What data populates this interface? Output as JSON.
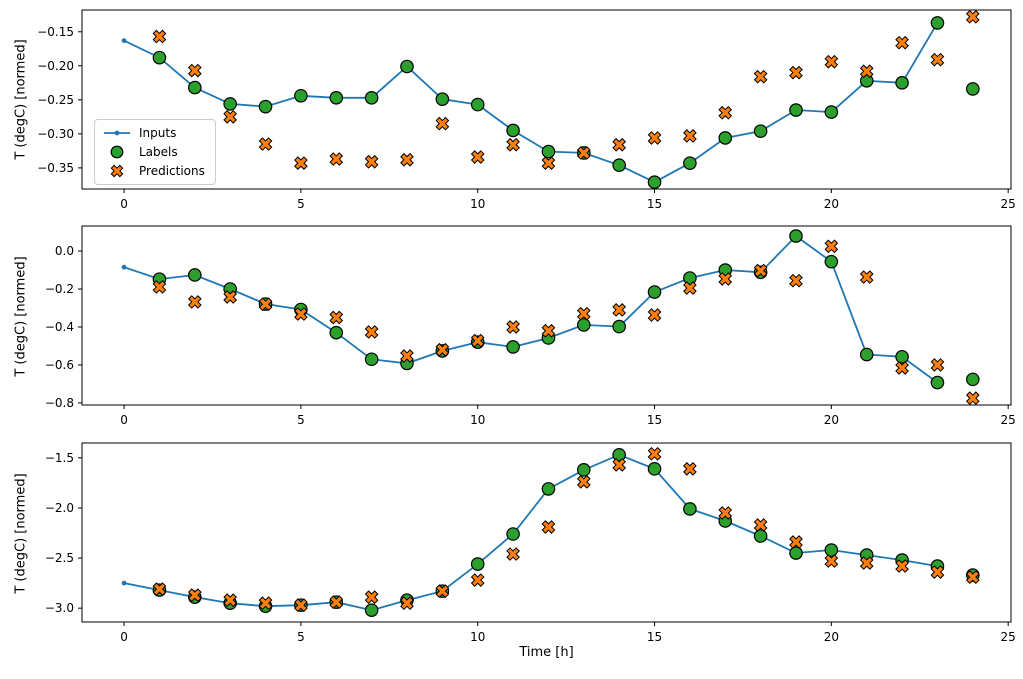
{
  "figure": {
    "xlabel": "Time [h]",
    "background_color": "#ffffff",
    "legend": {
      "items": [
        {
          "label": "Inputs",
          "type": "line",
          "color": "#1f77b4",
          "edge": "#000000"
        },
        {
          "label": "Labels",
          "type": "scatter-circle",
          "color": "#2ca02c",
          "edge": "#000000"
        },
        {
          "label": "Predictions",
          "type": "scatter-x",
          "color": "#ff7f0e",
          "edge": "#000000"
        }
      ]
    }
  },
  "chart_data": [
    {
      "type": "line",
      "title": "",
      "ylabel": "T (degC) [normed]",
      "xlabel": "",
      "xlim": [
        -1.19,
        25.08
      ],
      "ylim": [
        -0.381,
        -0.118
      ],
      "grid": false,
      "legend_position": "center-left",
      "xticks": {
        "values": [
          0,
          5,
          10,
          15,
          20,
          25
        ],
        "labels": [
          "0",
          "5",
          "10",
          "15",
          "20",
          "25"
        ]
      },
      "yticks": {
        "values": [
          -0.15,
          -0.2,
          -0.25,
          -0.3,
          -0.35
        ],
        "labels": [
          "−0.15",
          "−0.20",
          "−0.25",
          "−0.30",
          "−0.35"
        ]
      },
      "series": [
        {
          "name": "Inputs",
          "type": "line",
          "color": "#1f77b4",
          "x": [
            0,
            1,
            2,
            3,
            4,
            5,
            6,
            7,
            8,
            9,
            10,
            11,
            12,
            13,
            14,
            15,
            16,
            17,
            18,
            19,
            20,
            21,
            22,
            23
          ],
          "y": [
            -0.163,
            -0.188,
            -0.232,
            -0.256,
            -0.26,
            -0.244,
            -0.247,
            -0.247,
            -0.201,
            -0.249,
            -0.257,
            -0.295,
            -0.326,
            -0.328,
            -0.346,
            -0.371,
            -0.343,
            -0.306,
            -0.296,
            -0.265,
            -0.268,
            -0.222,
            -0.225,
            -0.137
          ]
        },
        {
          "name": "Labels",
          "type": "scatter-circle",
          "color": "#2ca02c",
          "edge": "#000000",
          "x": [
            1,
            2,
            3,
            4,
            5,
            6,
            7,
            8,
            9,
            10,
            11,
            12,
            13,
            14,
            15,
            16,
            17,
            18,
            19,
            20,
            21,
            22,
            23,
            24
          ],
          "y": [
            -0.188,
            -0.232,
            -0.256,
            -0.26,
            -0.244,
            -0.247,
            -0.247,
            -0.201,
            -0.249,
            -0.257,
            -0.295,
            -0.326,
            -0.328,
            -0.346,
            -0.371,
            -0.343,
            -0.306,
            -0.296,
            -0.265,
            -0.268,
            -0.222,
            -0.225,
            -0.137,
            -0.234
          ]
        },
        {
          "name": "Predictions",
          "type": "scatter-x",
          "color": "#ff7f0e",
          "edge": "#000000",
          "x": [
            1,
            2,
            3,
            4,
            5,
            6,
            7,
            8,
            9,
            10,
            11,
            12,
            13,
            14,
            15,
            16,
            17,
            18,
            19,
            20,
            21,
            22,
            23,
            24
          ],
          "y": [
            -0.157,
            -0.207,
            -0.275,
            -0.315,
            -0.343,
            -0.337,
            -0.341,
            -0.338,
            -0.285,
            -0.334,
            -0.316,
            -0.343,
            -0.328,
            -0.316,
            -0.306,
            -0.303,
            -0.269,
            -0.216,
            -0.21,
            -0.194,
            -0.208,
            -0.166,
            -0.191,
            -0.128
          ]
        }
      ]
    },
    {
      "type": "line",
      "title": "",
      "ylabel": "T (degC) [normed]",
      "xlabel": "",
      "xlim": [
        -1.19,
        25.08
      ],
      "ylim": [
        -0.811,
        0.132
      ],
      "grid": false,
      "legend_position": "none",
      "xticks": {
        "values": [
          0,
          5,
          10,
          15,
          20,
          25
        ],
        "labels": [
          "0",
          "5",
          "10",
          "15",
          "20",
          "25"
        ]
      },
      "yticks": {
        "values": [
          0.0,
          -0.2,
          -0.4,
          -0.6,
          -0.8
        ],
        "labels": [
          "0.0",
          "−0.2",
          "−0.4",
          "−0.6",
          "−0.8"
        ]
      },
      "series": [
        {
          "name": "Inputs",
          "type": "line",
          "color": "#1f77b4",
          "x": [
            0,
            1,
            2,
            3,
            4,
            5,
            6,
            7,
            8,
            9,
            10,
            11,
            12,
            13,
            14,
            15,
            16,
            17,
            18,
            19,
            20,
            21,
            22,
            23
          ],
          "y": [
            -0.085,
            -0.148,
            -0.126,
            -0.2,
            -0.279,
            -0.308,
            -0.43,
            -0.57,
            -0.592,
            -0.526,
            -0.48,
            -0.505,
            -0.458,
            -0.389,
            -0.398,
            -0.216,
            -0.142,
            -0.1,
            -0.112,
            0.079,
            -0.056,
            -0.545,
            -0.557,
            -0.693
          ]
        },
        {
          "name": "Labels",
          "type": "scatter-circle",
          "color": "#2ca02c",
          "edge": "#000000",
          "x": [
            1,
            2,
            3,
            4,
            5,
            6,
            7,
            8,
            9,
            10,
            11,
            12,
            13,
            14,
            15,
            16,
            17,
            18,
            19,
            20,
            21,
            22,
            23,
            24
          ],
          "y": [
            -0.148,
            -0.126,
            -0.2,
            -0.279,
            -0.308,
            -0.43,
            -0.57,
            -0.592,
            -0.526,
            -0.48,
            -0.505,
            -0.458,
            -0.389,
            -0.398,
            -0.216,
            -0.142,
            -0.1,
            -0.112,
            0.079,
            -0.056,
            -0.545,
            -0.557,
            -0.693,
            -0.676
          ]
        },
        {
          "name": "Predictions",
          "type": "scatter-x",
          "color": "#ff7f0e",
          "edge": "#000000",
          "x": [
            1,
            2,
            3,
            4,
            5,
            6,
            7,
            8,
            9,
            10,
            11,
            12,
            13,
            14,
            15,
            16,
            17,
            18,
            19,
            20,
            21,
            22,
            23,
            24
          ],
          "y": [
            -0.189,
            -0.268,
            -0.242,
            -0.28,
            -0.332,
            -0.35,
            -0.426,
            -0.553,
            -0.52,
            -0.472,
            -0.4,
            -0.42,
            -0.33,
            -0.31,
            -0.337,
            -0.195,
            -0.147,
            -0.103,
            -0.156,
            0.025,
            -0.137,
            -0.616,
            -0.6,
            -0.775
          ]
        }
      ]
    },
    {
      "type": "line",
      "title": "",
      "ylabel": "T (degC) [normed]",
      "xlabel": "Time [h]",
      "xlim": [
        -1.19,
        25.08
      ],
      "ylim": [
        -3.138,
        -1.352
      ],
      "grid": false,
      "legend_position": "none",
      "xticks": {
        "values": [
          0,
          5,
          10,
          15,
          20,
          25
        ],
        "labels": [
          "0",
          "5",
          "10",
          "15",
          "20",
          "25"
        ]
      },
      "yticks": {
        "values": [
          -1.5,
          -2.0,
          -2.5,
          -3.0
        ],
        "labels": [
          "−1.5",
          "−2.0",
          "−2.5",
          "−3.0"
        ]
      },
      "series": [
        {
          "name": "Inputs",
          "type": "line",
          "color": "#1f77b4",
          "x": [
            0,
            1,
            2,
            3,
            4,
            5,
            6,
            7,
            8,
            9,
            10,
            11,
            12,
            13,
            14,
            15,
            16,
            17,
            18,
            19,
            20,
            21,
            22,
            23
          ],
          "y": [
            -2.75,
            -2.82,
            -2.89,
            -2.95,
            -2.98,
            -2.97,
            -2.94,
            -3.02,
            -2.92,
            -2.83,
            -2.56,
            -2.26,
            -1.81,
            -1.62,
            -1.47,
            -1.61,
            -2.01,
            -2.13,
            -2.28,
            -2.45,
            -2.42,
            -2.47,
            -2.52,
            -2.58
          ]
        },
        {
          "name": "Labels",
          "type": "scatter-circle",
          "color": "#2ca02c",
          "edge": "#000000",
          "x": [
            1,
            2,
            3,
            4,
            5,
            6,
            7,
            8,
            9,
            10,
            11,
            12,
            13,
            14,
            15,
            16,
            17,
            18,
            19,
            20,
            21,
            22,
            23,
            24
          ],
          "y": [
            -2.82,
            -2.89,
            -2.95,
            -2.98,
            -2.97,
            -2.94,
            -3.02,
            -2.92,
            -2.83,
            -2.56,
            -2.26,
            -1.81,
            -1.62,
            -1.47,
            -1.61,
            -2.01,
            -2.13,
            -2.28,
            -2.45,
            -2.42,
            -2.47,
            -2.52,
            -2.58,
            -2.67
          ]
        },
        {
          "name": "Predictions",
          "type": "scatter-x",
          "color": "#ff7f0e",
          "edge": "#000000",
          "x": [
            1,
            2,
            3,
            4,
            5,
            6,
            7,
            8,
            9,
            10,
            11,
            12,
            13,
            14,
            15,
            16,
            17,
            18,
            19,
            20,
            21,
            22,
            23,
            24
          ],
          "y": [
            -2.81,
            -2.87,
            -2.92,
            -2.95,
            -2.97,
            -2.94,
            -2.89,
            -2.95,
            -2.83,
            -2.72,
            -2.46,
            -2.19,
            -1.74,
            -1.57,
            -1.46,
            -1.61,
            -2.05,
            -2.17,
            -2.34,
            -2.53,
            -2.55,
            -2.58,
            -2.64,
            -2.69
          ]
        }
      ]
    }
  ]
}
